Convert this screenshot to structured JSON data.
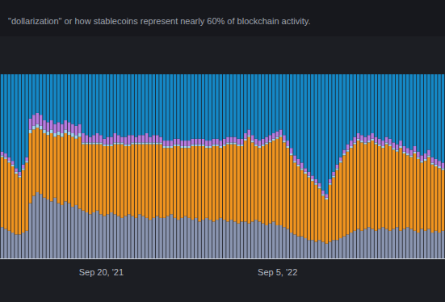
{
  "chart_data": {
    "type": "bar",
    "title": "\"dollarization\" or how stablecoins represent nearly 60% of blockchain activity.",
    "stacked": true,
    "tick_labels": "x",
    "ylim": [
      0,
      100
    ],
    "categories": [
      null,
      null,
      null,
      null,
      null,
      null,
      null,
      null,
      null,
      null,
      null,
      null,
      null,
      null,
      null,
      null,
      null,
      null,
      null,
      null,
      null,
      null,
      null,
      null,
      null,
      null,
      null,
      null,
      "Sep 20, '21",
      null,
      null,
      null,
      null,
      null,
      null,
      null,
      null,
      null,
      null,
      null,
      null,
      null,
      null,
      null,
      null,
      null,
      null,
      null,
      null,
      null,
      null,
      null,
      null,
      null,
      null,
      null,
      null,
      null,
      null,
      null,
      null,
      null,
      null,
      null,
      null,
      null,
      null,
      null,
      null,
      null,
      null,
      null,
      null,
      null,
      null,
      null,
      null,
      null,
      "Sep 5, '22",
      null,
      null,
      null,
      null,
      null,
      null,
      null,
      null,
      null,
      null,
      null,
      null,
      null,
      null,
      null,
      null,
      null,
      null,
      null,
      null,
      null,
      null,
      null,
      null,
      null,
      null,
      null,
      null,
      null,
      null,
      null,
      null,
      null,
      null,
      null,
      null,
      null,
      null,
      null,
      null,
      null,
      null,
      null,
      null,
      null,
      null,
      null
    ],
    "series": [
      {
        "color": "#8a95b0",
        "values": [
          17,
          16,
          15,
          14,
          13,
          13,
          14,
          15,
          30,
          34,
          36,
          35,
          33,
          32,
          31,
          33,
          30,
          29,
          31,
          30,
          28,
          29,
          27,
          26,
          25,
          24,
          25,
          26,
          24,
          23,
          24,
          25,
          24,
          23,
          22,
          23,
          24,
          23,
          22,
          24,
          23,
          22,
          21,
          22,
          23,
          22,
          22,
          23,
          24,
          22,
          21,
          22,
          23,
          22,
          21,
          22,
          20,
          21,
          22,
          21,
          20,
          21,
          22,
          21,
          20,
          21,
          20,
          19,
          20,
          20,
          19,
          20,
          21,
          20,
          19,
          18,
          19,
          20,
          18,
          18,
          17,
          16,
          14,
          13,
          12,
          12,
          11,
          10,
          10,
          9,
          10,
          9,
          8,
          9,
          10,
          10,
          11,
          12,
          13,
          14,
          15,
          16,
          15,
          16,
          17,
          16,
          15,
          16,
          17,
          16,
          15,
          16,
          17,
          15,
          16,
          17,
          16,
          15,
          14,
          16,
          15,
          16,
          14,
          15,
          14,
          15
        ]
      },
      {
        "color": "#f0941f",
        "values": [
          38,
          38,
          37,
          36,
          33,
          31,
          34,
          37,
          38,
          36,
          35,
          35,
          35,
          35,
          37,
          33,
          37,
          37,
          37,
          37,
          38,
          36,
          39,
          36,
          37,
          38,
          37,
          36,
          38,
          38,
          37,
          36,
          38,
          39,
          40,
          38,
          37,
          39,
          40,
          38,
          39,
          40,
          41,
          40,
          39,
          40,
          38,
          37,
          36,
          39,
          40,
          38,
          37,
          38,
          40,
          39,
          41,
          40,
          38,
          39,
          41,
          40,
          38,
          40,
          42,
          41,
          42,
          42,
          41,
          44,
          47,
          43,
          40,
          40,
          42,
          44,
          44,
          44,
          47,
          48,
          46,
          44,
          42,
          39,
          38,
          36,
          35,
          34,
          32,
          31,
          28,
          25,
          24,
          31,
          34,
          38,
          41,
          44,
          45,
          46,
          47,
          48,
          48,
          46,
          46,
          48,
          47,
          45,
          43,
          46,
          46,
          43,
          41,
          45,
          41,
          39,
          39,
          42,
          40,
          36,
          38,
          39,
          37,
          35,
          35,
          33
        ]
      },
      {
        "color": "#a3d6f0",
        "values": [
          1,
          1,
          1,
          1,
          1,
          1,
          1,
          1,
          2,
          2,
          2,
          2,
          2,
          2,
          2,
          2,
          2,
          2,
          2,
          2,
          2,
          2,
          2,
          1,
          1,
          1,
          1,
          1,
          1,
          1,
          1,
          1,
          1,
          1,
          1,
          1,
          1,
          1,
          1,
          1,
          1,
          1,
          1,
          1,
          1,
          1,
          1,
          1,
          1,
          1,
          1,
          1,
          1,
          1,
          1,
          1,
          1,
          1,
          1,
          1,
          1,
          1,
          1,
          1,
          1,
          1,
          1,
          1,
          1,
          1,
          1,
          1,
          1,
          1,
          1,
          1,
          1,
          1,
          1,
          1,
          1,
          1,
          1,
          1,
          1,
          1,
          1,
          1,
          1,
          1,
          1,
          1,
          1,
          1,
          1,
          1,
          1,
          1,
          1,
          1,
          1,
          1,
          1,
          1,
          1,
          1,
          1,
          1,
          1,
          1,
          1,
          1,
          1,
          1,
          1,
          1,
          1,
          1,
          1,
          1,
          1,
          1,
          1,
          1,
          1,
          1
        ]
      },
      {
        "color": "#b67be0",
        "values": [
          2,
          2,
          2,
          2,
          2,
          2,
          2,
          2,
          6,
          6,
          6,
          6,
          5,
          5,
          5,
          5,
          5,
          5,
          5,
          5,
          5,
          5,
          5,
          5,
          4,
          3,
          4,
          5,
          4,
          3,
          4,
          4,
          5,
          4,
          3,
          4,
          5,
          4,
          3,
          4,
          4,
          5,
          3,
          4,
          4,
          3,
          3,
          3,
          3,
          3,
          3,
          3,
          3,
          3,
          3,
          3,
          3,
          3,
          3,
          3,
          3,
          3,
          3,
          3,
          3,
          3,
          3,
          3,
          3,
          3,
          3,
          3,
          3,
          3,
          3,
          3,
          3,
          3,
          3,
          3,
          3,
          3,
          3,
          3,
          3,
          3,
          2,
          2,
          2,
          2,
          2,
          2,
          2,
          2,
          2,
          2,
          2,
          2,
          3,
          3,
          3,
          3,
          3,
          3,
          3,
          3,
          3,
          3,
          3,
          3,
          3,
          3,
          3,
          3,
          3,
          3,
          3,
          3,
          3,
          3,
          3,
          3,
          3,
          3,
          3,
          3
        ]
      },
      {
        "color": "#1588c6",
        "values": [
          42,
          43,
          45,
          47,
          51,
          53,
          49,
          45,
          24,
          22,
          21,
          22,
          25,
          26,
          25,
          27,
          26,
          27,
          25,
          26,
          27,
          28,
          27,
          32,
          33,
          34,
          33,
          32,
          33,
          35,
          34,
          34,
          32,
          33,
          34,
          34,
          33,
          33,
          34,
          33,
          33,
          32,
          34,
          33,
          33,
          34,
          36,
          36,
          36,
          35,
          35,
          36,
          36,
          36,
          35,
          35,
          35,
          35,
          36,
          36,
          35,
          35,
          36,
          35,
          34,
          34,
          34,
          35,
          35,
          32,
          30,
          33,
          35,
          36,
          35,
          34,
          33,
          32,
          31,
          30,
          33,
          36,
          40,
          44,
          46,
          48,
          51,
          53,
          55,
          57,
          59,
          63,
          65,
          57,
          53,
          49,
          45,
          41,
          38,
          36,
          34,
          32,
          33,
          34,
          33,
          32,
          34,
          35,
          36,
          34,
          35,
          37,
          38,
          36,
          39,
          40,
          41,
          39,
          42,
          44,
          43,
          41,
          45,
          46,
          47,
          48
        ]
      }
    ]
  }
}
